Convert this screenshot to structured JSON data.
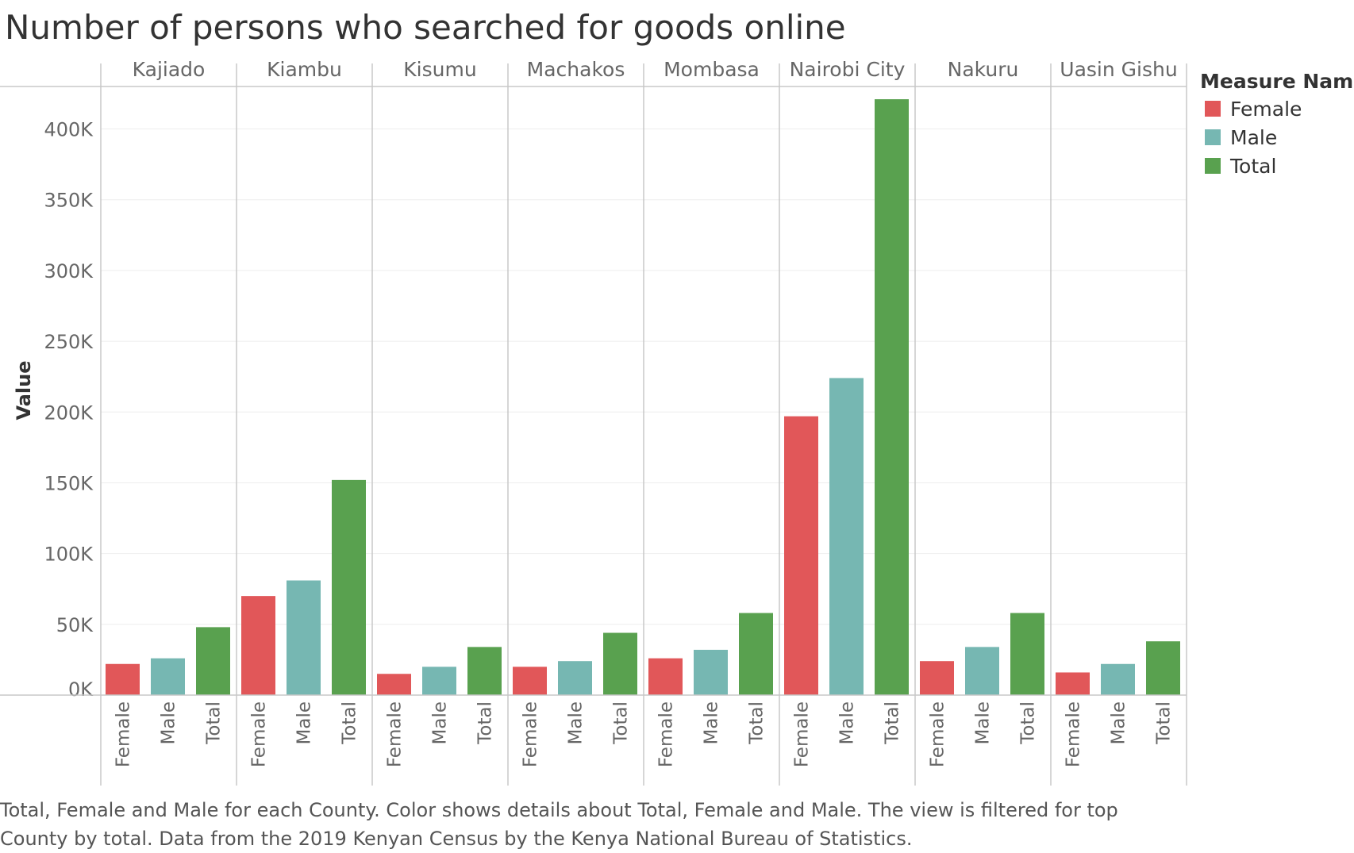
{
  "chart_data": {
    "type": "bar",
    "title": "Number of persons who searched for goods online",
    "ylabel": "Value",
    "xlabel": "",
    "ylim": [
      0,
      430000
    ],
    "yticks": [
      0,
      50000,
      100000,
      150000,
      200000,
      250000,
      300000,
      350000,
      400000
    ],
    "ytick_labels": [
      "0K",
      "50K",
      "100K",
      "150K",
      "200K",
      "250K",
      "300K",
      "350K",
      "400K"
    ],
    "grid": true,
    "legend_position": "top-right",
    "legend_title": "Measure Names",
    "measures": [
      "Female",
      "Male",
      "Total"
    ],
    "colors": {
      "Female": "#e15759",
      "Male": "#76b7b2",
      "Total": "#59a14f"
    },
    "groups": [
      {
        "county": "Kajiado",
        "values": {
          "Female": 22000,
          "Male": 26000,
          "Total": 48000
        }
      },
      {
        "county": "Kiambu",
        "values": {
          "Female": 70000,
          "Male": 81000,
          "Total": 152000
        }
      },
      {
        "county": "Kisumu",
        "values": {
          "Female": 15000,
          "Male": 20000,
          "Total": 34000
        }
      },
      {
        "county": "Machakos",
        "values": {
          "Female": 20000,
          "Male": 24000,
          "Total": 44000
        }
      },
      {
        "county": "Mombasa",
        "values": {
          "Female": 26000,
          "Male": 32000,
          "Total": 58000
        }
      },
      {
        "county": "Nairobi City",
        "values": {
          "Female": 197000,
          "Male": 224000,
          "Total": 421000
        }
      },
      {
        "county": "Nakuru",
        "values": {
          "Female": 24000,
          "Male": 34000,
          "Total": 58000
        }
      },
      {
        "county": "Uasin Gishu",
        "values": {
          "Female": 16000,
          "Male": 22000,
          "Total": 38000
        }
      }
    ]
  },
  "caption": "Total, Female and Male for each County.  Color shows details about Total, Female and Male. The view is filtered for top County by total. Data from the 2019 Kenyan Census by the Kenya National Bureau of Statistics."
}
